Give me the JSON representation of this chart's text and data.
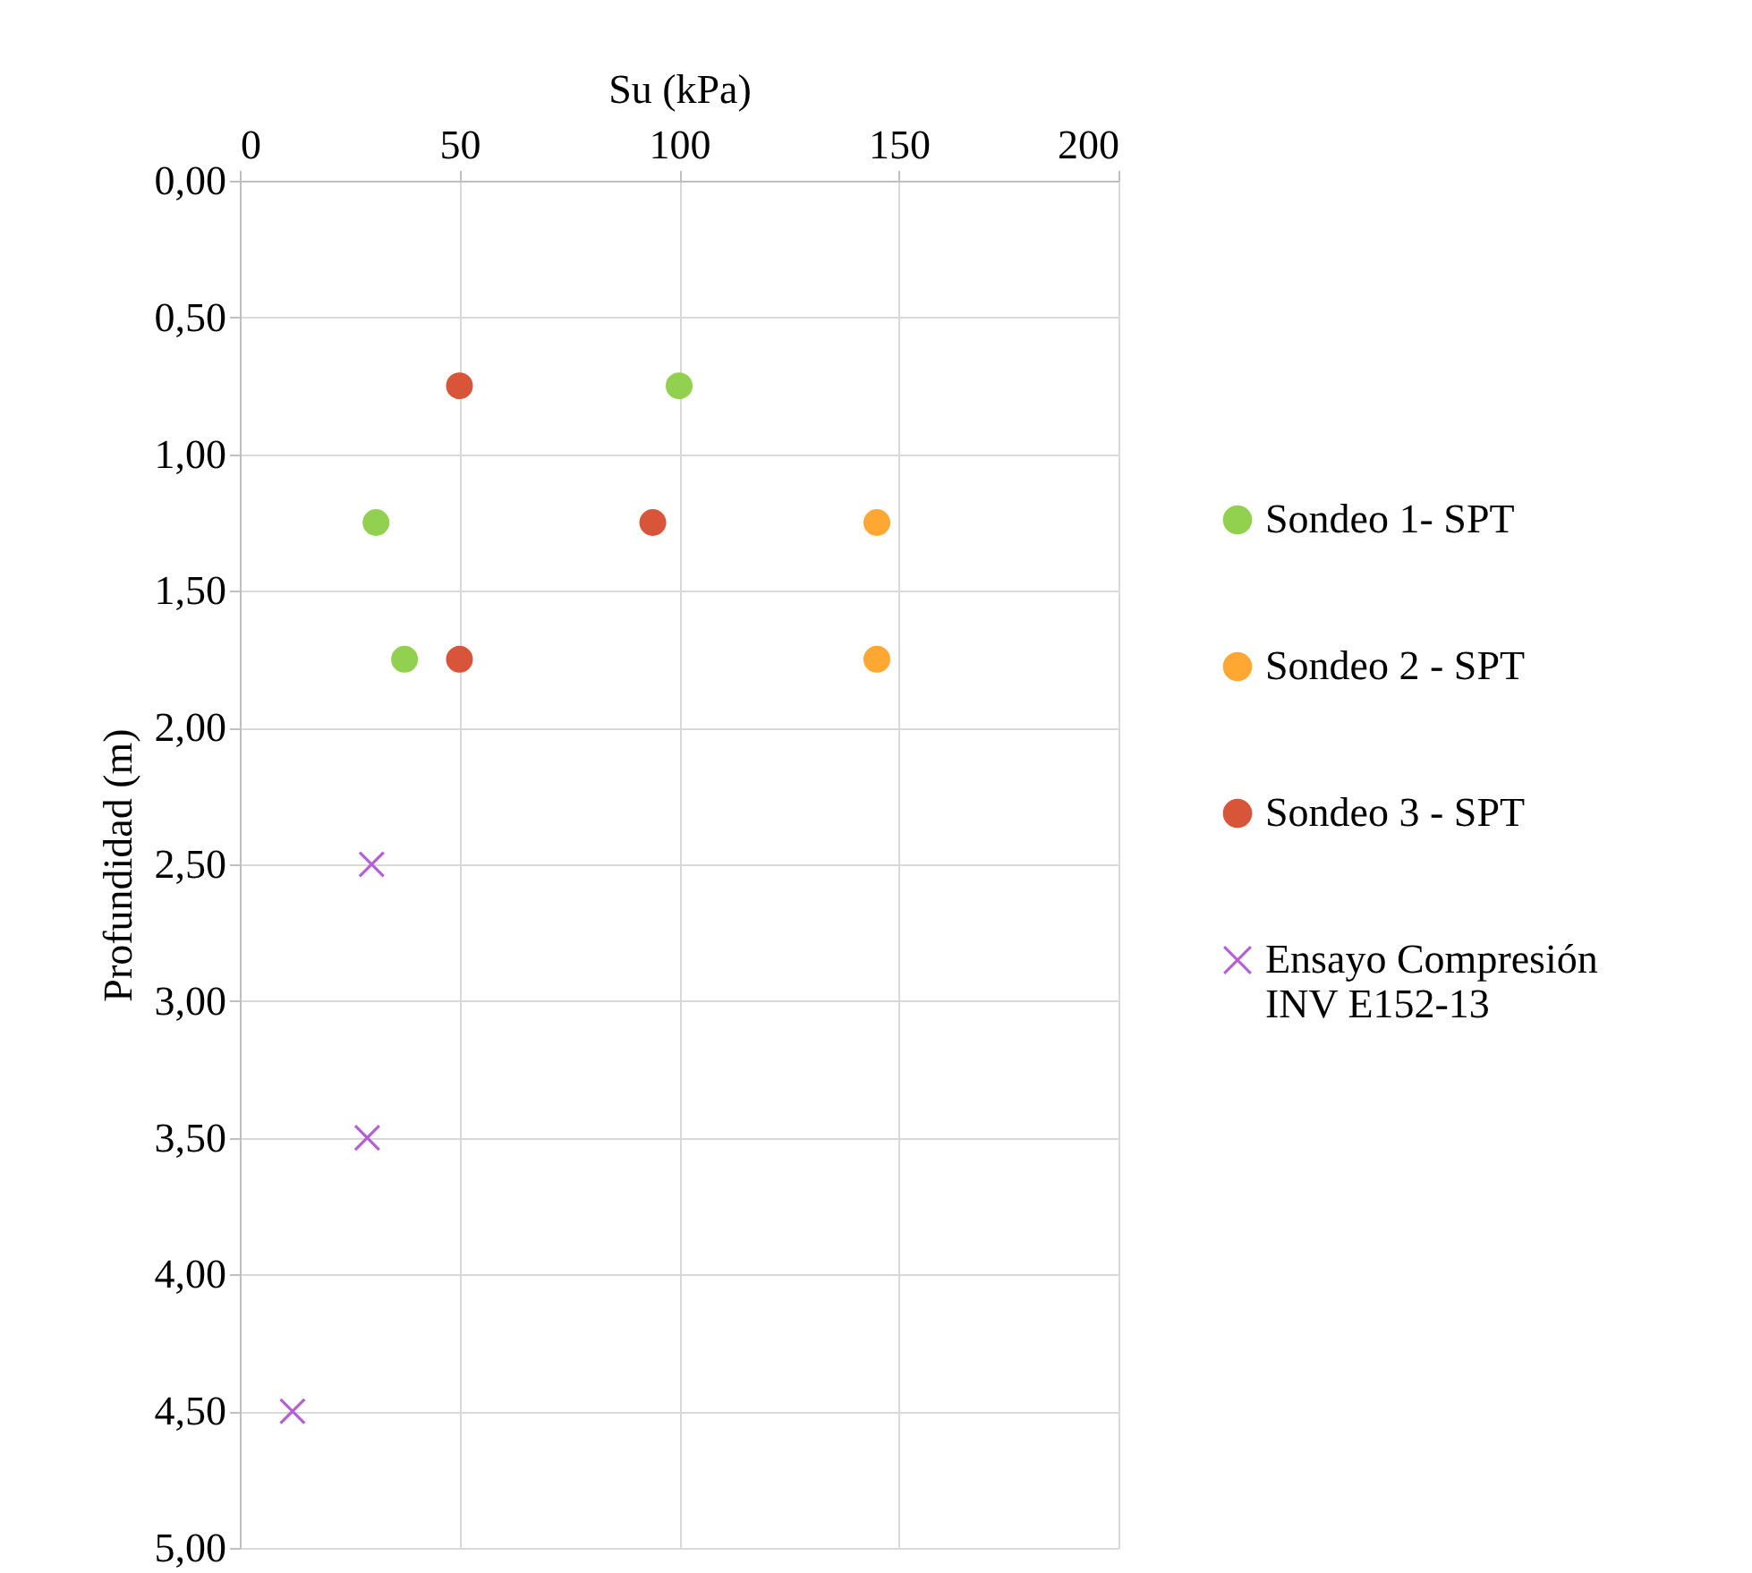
{
  "chart_data": {
    "type": "scatter",
    "xlabel": "Su (kPa)",
    "ylabel": "Profundidad (m)",
    "xlim": [
      0,
      200
    ],
    "xticks": [
      0,
      50,
      100,
      150,
      200
    ],
    "ylim": [
      5,
      0
    ],
    "yticks": [
      {
        "value": 0,
        "label": "0,00"
      },
      {
        "value": 0.5,
        "label": "0,50"
      },
      {
        "value": 1,
        "label": "1,00"
      },
      {
        "value": 1.5,
        "label": "1,50"
      },
      {
        "value": 2,
        "label": "2,00"
      },
      {
        "value": 2.5,
        "label": "2,50"
      },
      {
        "value": 3,
        "label": "3,00"
      },
      {
        "value": 3.5,
        "label": "3,50"
      },
      {
        "value": 4,
        "label": "4,00"
      },
      {
        "value": 4.5,
        "label": "4,50"
      },
      {
        "value": 5,
        "label": "5,00"
      }
    ],
    "grid": true,
    "legend": "right",
    "series": [
      {
        "name": "Sondeo 1- SPT",
        "color": "#92d050",
        "marker": "circle",
        "x": [
          100,
          31,
          37.5
        ],
        "values": [
          0.75,
          1.25,
          1.75
        ]
      },
      {
        "name": "Sondeo 2 - SPT",
        "color": "#ffa733",
        "marker": "circle",
        "x": [
          145,
          145
        ],
        "values": [
          1.25,
          1.75
        ]
      },
      {
        "name": "Sondeo 3 - SPT",
        "color": "#d9553a",
        "marker": "circle",
        "x": [
          50,
          94,
          50
        ],
        "values": [
          0.75,
          1.25,
          1.75
        ]
      },
      {
        "name": "Ensayo Compresión INV E152-13",
        "color": "#b45fd6",
        "marker": "cross",
        "x": [
          30,
          29,
          12
        ],
        "values": [
          2.5,
          3.5,
          4.5
        ]
      }
    ]
  }
}
